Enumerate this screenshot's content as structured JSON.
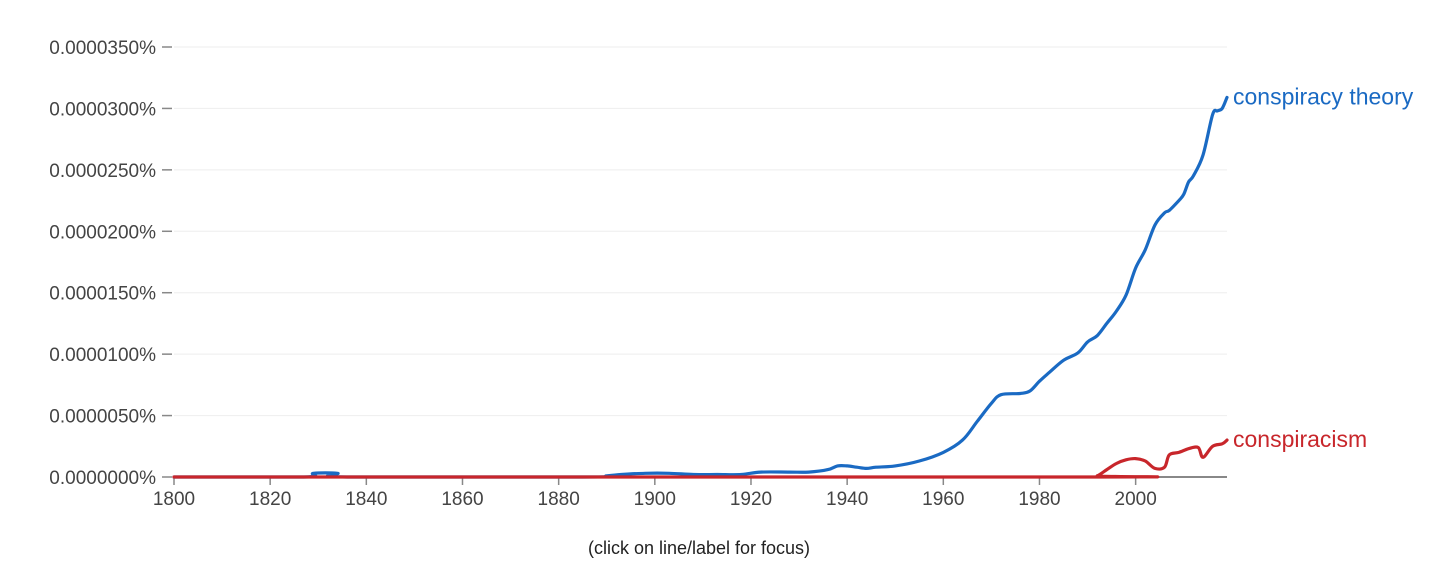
{
  "chart_data": {
    "type": "line",
    "xlim": [
      1800,
      2019
    ],
    "ylim": [
      0,
      3.5e-05
    ],
    "grid": true,
    "x_ticks": [
      1800,
      1820,
      1840,
      1860,
      1880,
      1900,
      1920,
      1940,
      1960,
      1980,
      2000
    ],
    "x_tick_labels": [
      "1800",
      "1820",
      "1840",
      "1860",
      "1880",
      "1900",
      "1920",
      "1940",
      "1960",
      "1980",
      "2000"
    ],
    "y_ticks": [
      0,
      5e-06,
      1e-05,
      1.5e-05,
      2e-05,
      2.5e-05,
      3e-05,
      3.5e-05
    ],
    "y_tick_labels": [
      "0.0000000%",
      "0.0000050%",
      "0.0000100%",
      "0.0000150%",
      "0.0000200%",
      "0.0000250%",
      "0.0000300%",
      "0.0000350%"
    ],
    "series": [
      {
        "name": "conspiracy theory",
        "color": "#1a6ac3",
        "points": [
          [
            1800,
            0.0
          ],
          [
            1827,
            0.0
          ],
          [
            1829,
            3e-07
          ],
          [
            1834,
            3e-07
          ],
          [
            1836,
            0.0
          ],
          [
            1885,
            0.0
          ],
          [
            1890,
            1e-07
          ],
          [
            1893,
            2e-07
          ],
          [
            1898,
            3e-07
          ],
          [
            1903,
            3e-07
          ],
          [
            1908,
            2e-07
          ],
          [
            1913,
            2e-07
          ],
          [
            1918,
            2e-07
          ],
          [
            1922,
            4e-07
          ],
          [
            1928,
            4e-07
          ],
          [
            1932,
            4e-07
          ],
          [
            1936,
            6e-07
          ],
          [
            1938,
            9e-07
          ],
          [
            1940,
            9e-07
          ],
          [
            1942,
            8e-07
          ],
          [
            1944,
            7e-07
          ],
          [
            1946,
            8e-07
          ],
          [
            1950,
            9e-07
          ],
          [
            1955,
            1.3e-06
          ],
          [
            1960,
            2e-06
          ],
          [
            1964,
            3e-06
          ],
          [
            1967,
            4.5e-06
          ],
          [
            1970,
            6e-06
          ],
          [
            1972,
            6.7e-06
          ],
          [
            1976,
            6.8e-06
          ],
          [
            1978,
            7e-06
          ],
          [
            1980,
            7.8e-06
          ],
          [
            1982,
            8.5e-06
          ],
          [
            1985,
            9.5e-06
          ],
          [
            1988,
            1.01e-05
          ],
          [
            1990,
            1.1e-05
          ],
          [
            1992,
            1.15e-05
          ],
          [
            1994,
            1.25e-05
          ],
          [
            1996,
            1.35e-05
          ],
          [
            1998,
            1.48e-05
          ],
          [
            2000,
            1.7e-05
          ],
          [
            2002,
            1.85e-05
          ],
          [
            2004,
            2.05e-05
          ],
          [
            2006,
            2.15e-05
          ],
          [
            2007,
            2.17e-05
          ],
          [
            2009,
            2.25e-05
          ],
          [
            2010,
            2.3e-05
          ],
          [
            2011,
            2.4e-05
          ],
          [
            2012,
            2.45e-05
          ],
          [
            2014,
            2.62e-05
          ],
          [
            2016,
            2.95e-05
          ],
          [
            2017,
            2.98e-05
          ],
          [
            2018,
            3e-05
          ],
          [
            2019,
            3.09e-05
          ]
        ]
      },
      {
        "name": "conspiracism",
        "color": "#c8262b",
        "points": [
          [
            1800,
            0.0
          ],
          [
            1990,
            0.0
          ],
          [
            1992,
            1e-07
          ],
          [
            1994,
            6e-07
          ],
          [
            1996,
            1.1e-06
          ],
          [
            1998,
            1.4e-06
          ],
          [
            2000,
            1.5e-06
          ],
          [
            2002,
            1.3e-06
          ],
          [
            2004,
            7e-07
          ],
          [
            2006,
            8e-07
          ],
          [
            2007,
            1.8e-06
          ],
          [
            2009,
            2e-06
          ],
          [
            2011,
            2.3e-06
          ],
          [
            2013,
            2.4e-06
          ],
          [
            2014,
            1.6e-06
          ],
          [
            2016,
            2.5e-06
          ],
          [
            2018,
            2.7e-06
          ],
          [
            2019,
            3e-06
          ]
        ]
      }
    ],
    "caption": "(click on line/label for focus)"
  }
}
